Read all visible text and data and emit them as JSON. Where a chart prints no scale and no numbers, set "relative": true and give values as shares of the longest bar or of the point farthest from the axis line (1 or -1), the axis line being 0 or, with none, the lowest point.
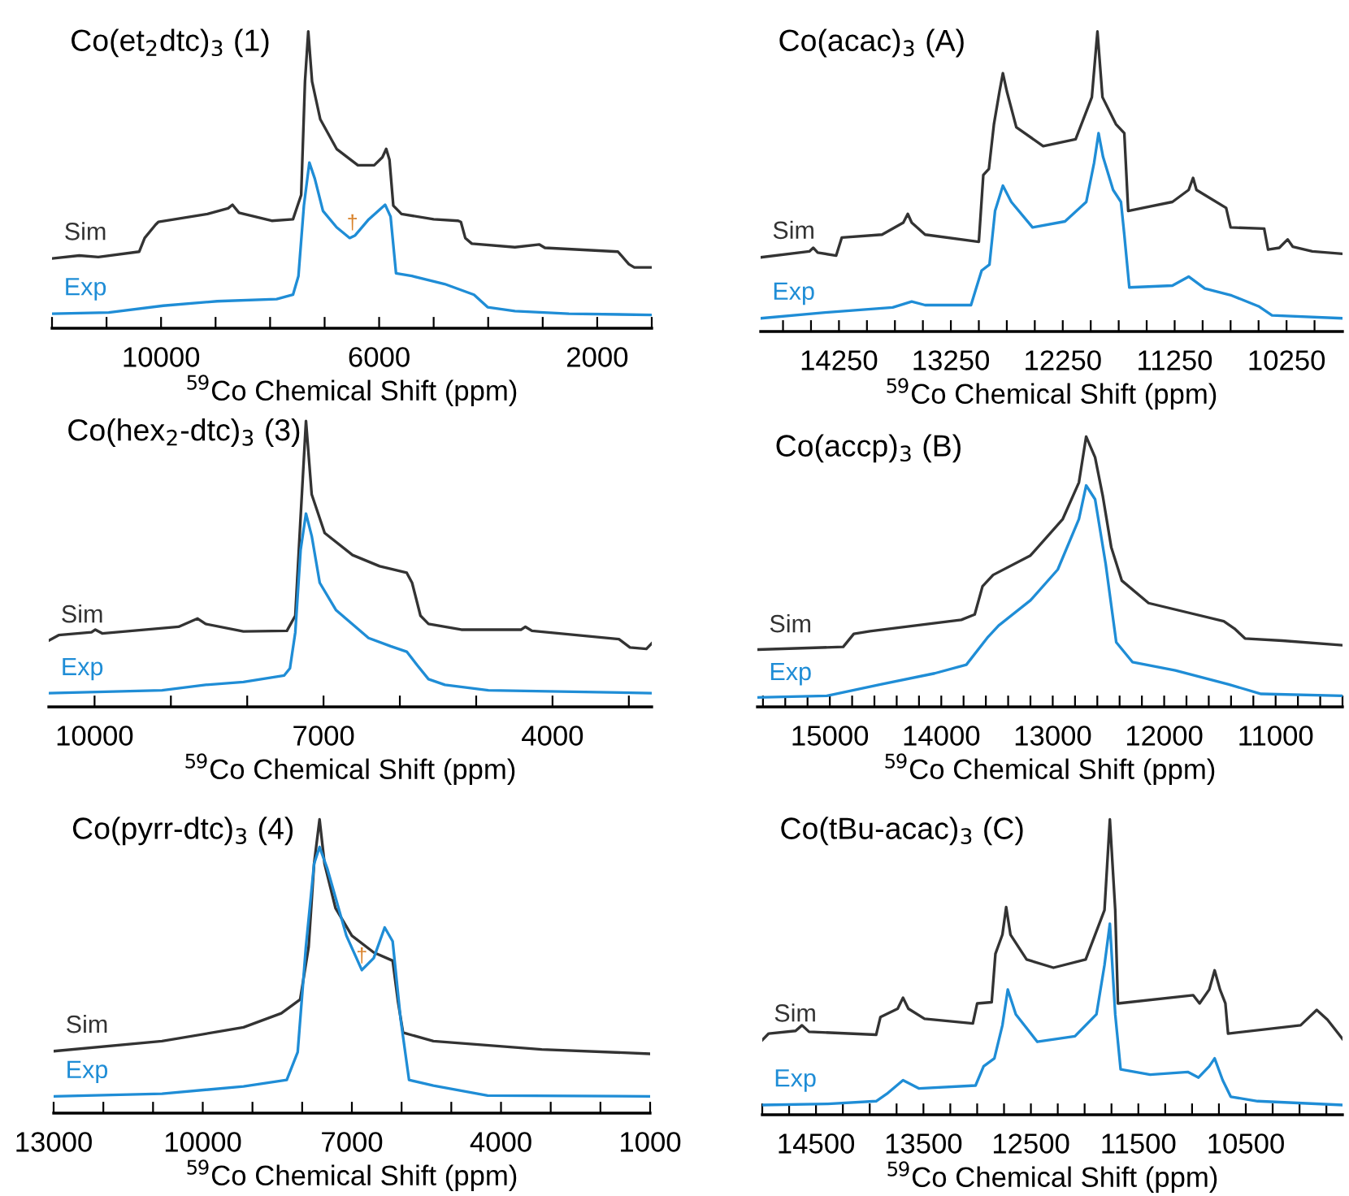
{
  "chart_data": [
    {
      "type": "line",
      "title": "Co(et$_{2}$dtc)$_{3}$ (1)",
      "xlabel": "$^{59}$Co Chemical Shift (ppm)",
      "relative": true,
      "tick_labels": "x",
      "xlim": [
        12000,
        1000
      ],
      "xticks": [
        {
          "value": 12000,
          "label": null
        },
        {
          "value": 11000,
          "label": null
        },
        10000,
        {
          "value": 9000,
          "label": null
        },
        {
          "value": 8000,
          "label": null
        },
        {
          "value": 7000,
          "label": null
        },
        6000,
        {
          "value": 5000,
          "label": null
        },
        {
          "value": 4000,
          "label": null
        },
        {
          "value": 3000,
          "label": null
        },
        2000,
        {
          "value": 1000,
          "label": null
        }
      ],
      "annotations": [
        {
          "text": "†",
          "x": 6490,
          "y": 0.32
        }
      ],
      "series": [
        {
          "name": "Sim",
          "color": "#333333",
          "x": [
            12000,
            11500,
            11150,
            10400,
            10300,
            10100,
            10050,
            9150,
            8770,
            8690,
            8570,
            7970,
            7580,
            7430,
            7360,
            7300,
            7230,
            7080,
            6780,
            6390,
            6090,
            5940,
            5870,
            5810,
            5740,
            5590,
            5000,
            4550,
            4500,
            4420,
            4300,
            3510,
            3060,
            2960,
            1620,
            1420,
            1320,
            1000
          ],
          "values": [
            0.235,
            0.245,
            0.24,
            0.258,
            0.304,
            0.349,
            0.358,
            0.385,
            0.404,
            0.416,
            0.389,
            0.362,
            0.367,
            0.449,
            0.831,
            1.0,
            0.831,
            0.704,
            0.604,
            0.549,
            0.549,
            0.576,
            0.604,
            0.567,
            0.413,
            0.385,
            0.367,
            0.362,
            0.358,
            0.304,
            0.285,
            0.273,
            0.282,
            0.271,
            0.258,
            0.216,
            0.205,
            0.205
          ]
        },
        {
          "name": "Exp",
          "color": "#1f8dd6",
          "x": [
            12000,
            10960,
            9960,
            8970,
            7880,
            7580,
            7480,
            7380,
            7280,
            7180,
            7030,
            6780,
            6540,
            6440,
            6190,
            5890,
            5790,
            5690,
            5400,
            4800,
            4260,
            4010,
            3510,
            2520,
            1000
          ],
          "values": [
            0.049,
            0.053,
            0.076,
            0.091,
            0.098,
            0.113,
            0.176,
            0.413,
            0.558,
            0.504,
            0.395,
            0.34,
            0.304,
            0.313,
            0.367,
            0.416,
            0.376,
            0.185,
            0.176,
            0.149,
            0.113,
            0.071,
            0.058,
            0.049,
            0.045
          ]
        }
      ]
    },
    {
      "type": "line",
      "title": "Co(acac)$_{3}$ (A)",
      "xlabel": "$^{59}$Co Chemical Shift (ppm)",
      "relative": true,
      "tick_labels": "x",
      "xlim": [
        14950,
        9750
      ],
      "xticks": [
        {
          "value": 14750,
          "label": null
        },
        {
          "value": 14500,
          "label": null
        },
        14250,
        {
          "value": 14000,
          "label": null
        },
        {
          "value": 13750,
          "label": null
        },
        {
          "value": 13500,
          "label": null
        },
        13250,
        {
          "value": 13000,
          "label": null
        },
        {
          "value": 12750,
          "label": null
        },
        {
          "value": 12500,
          "label": null
        },
        12250,
        {
          "value": 12000,
          "label": null
        },
        {
          "value": 11750,
          "label": null
        },
        {
          "value": 11500,
          "label": null
        },
        11250,
        {
          "value": 11000,
          "label": null
        },
        {
          "value": 10750,
          "label": null
        },
        {
          "value": 10500,
          "label": null
        },
        10250,
        {
          "value": 10000,
          "label": null
        }
      ],
      "series": [
        {
          "name": "Sim",
          "color": "#333333",
          "x": [
            14950,
            14515,
            14480,
            14440,
            14275,
            14225,
            13865,
            13675,
            13635,
            13600,
            13480,
            13000,
            12960,
            12910,
            12865,
            12815,
            12785,
            12750,
            12665,
            12425,
            12135,
            11990,
            11940,
            11895,
            11775,
            11700,
            11665,
            11270,
            11125,
            11085,
            11055,
            10790,
            10750,
            10450,
            10415,
            10315,
            10240,
            10195,
            10020,
            9750
          ],
          "values": [
            0.247,
            0.267,
            0.279,
            0.263,
            0.253,
            0.313,
            0.323,
            0.363,
            0.392,
            0.363,
            0.323,
            0.299,
            0.522,
            0.542,
            0.691,
            0.801,
            0.861,
            0.801,
            0.681,
            0.618,
            0.641,
            0.781,
            1.0,
            0.781,
            0.691,
            0.661,
            0.402,
            0.432,
            0.472,
            0.512,
            0.472,
            0.412,
            0.347,
            0.343,
            0.273,
            0.279,
            0.307,
            0.283,
            0.267,
            0.259
          ]
        },
        {
          "name": "Exp",
          "color": "#1f8dd6",
          "x": [
            14950,
            14350,
            13770,
            13600,
            13480,
            13070,
            13025,
            12975,
            12905,
            12855,
            12785,
            12710,
            12520,
            12230,
            12040,
            11970,
            11930,
            11890,
            11800,
            11730,
            11700,
            11655,
            11270,
            11125,
            10980,
            10740,
            10500,
            10380,
            9750
          ],
          "values": [
            0.044,
            0.064,
            0.08,
            0.1,
            0.088,
            0.088,
            0.143,
            0.203,
            0.223,
            0.402,
            0.486,
            0.432,
            0.347,
            0.367,
            0.432,
            0.562,
            0.661,
            0.582,
            0.472,
            0.432,
            0.323,
            0.147,
            0.153,
            0.183,
            0.143,
            0.12,
            0.084,
            0.054,
            0.044
          ]
        }
      ]
    },
    {
      "type": "line",
      "title": "Co(hex$_{2}$-dtc)$_{3}$ (3)",
      "xlabel": "$^{59}$Co Chemical Shift (ppm)",
      "relative": true,
      "tick_labels": "x",
      "xlim": [
        10600,
        2700
      ],
      "xticks": [
        10000,
        {
          "value": 9000,
          "label": null
        },
        {
          "value": 8000,
          "label": null
        },
        7000,
        {
          "value": 6000,
          "label": null
        },
        {
          "value": 5000,
          "label": null
        },
        4000,
        {
          "value": 3000,
          "label": null
        }
      ],
      "series": [
        {
          "name": "Sim",
          "color": "#333333",
          "x": [
            10600,
            10470,
            10040,
            9990,
            9900,
            8900,
            8650,
            8545,
            8050,
            7480,
            7370,
            7300,
            7230,
            7155,
            6985,
            6620,
            6265,
            5910,
            5840,
            5730,
            5625,
            5195,
            4410,
            4355,
            4270,
            3130,
            2985,
            2770,
            2700
          ],
          "values": [
            0.232,
            0.251,
            0.261,
            0.27,
            0.257,
            0.28,
            0.309,
            0.29,
            0.264,
            0.266,
            0.319,
            0.666,
            1.0,
            0.743,
            0.608,
            0.531,
            0.492,
            0.469,
            0.434,
            0.319,
            0.29,
            0.27,
            0.27,
            0.28,
            0.266,
            0.237,
            0.208,
            0.203,
            0.222
          ]
        },
        {
          "name": "Exp",
          "color": "#1f8dd6",
          "x": [
            10600,
            9115,
            8545,
            8050,
            7515,
            7440,
            7370,
            7300,
            7230,
            7155,
            7050,
            6835,
            6410,
            6120,
            5910,
            5770,
            5625,
            5410,
            4840,
            2700
          ],
          "values": [
            0.048,
            0.058,
            0.077,
            0.087,
            0.11,
            0.135,
            0.261,
            0.55,
            0.676,
            0.598,
            0.434,
            0.338,
            0.241,
            0.212,
            0.193,
            0.145,
            0.097,
            0.077,
            0.058,
            0.048
          ]
        }
      ]
    },
    {
      "type": "line",
      "title": "Co(accp)$_{3}$ (B)",
      "xlabel": "$^{59}$Co Chemical Shift (ppm)",
      "relative": true,
      "tick_labels": "x",
      "xlim": [
        15650,
        10400
      ],
      "xticks": [
        {
          "value": 15600,
          "label": null
        },
        {
          "value": 15400,
          "label": null
        },
        {
          "value": 15200,
          "label": null
        },
        15000,
        {
          "value": 14800,
          "label": null
        },
        {
          "value": 14600,
          "label": null
        },
        {
          "value": 14400,
          "label": null
        },
        {
          "value": 14200,
          "label": null
        },
        14000,
        {
          "value": 13800,
          "label": null
        },
        {
          "value": 13600,
          "label": null
        },
        {
          "value": 13400,
          "label": null
        },
        {
          "value": 13200,
          "label": null
        },
        13000,
        {
          "value": 12800,
          "label": null
        },
        {
          "value": 12600,
          "label": null
        },
        {
          "value": 12400,
          "label": null
        },
        {
          "value": 12200,
          "label": null
        },
        12000,
        {
          "value": 11800,
          "label": null
        },
        {
          "value": 11600,
          "label": null
        },
        {
          "value": 11400,
          "label": null
        },
        {
          "value": 11200,
          "label": null
        },
        11000,
        {
          "value": 10800,
          "label": null
        },
        {
          "value": 10600,
          "label": null
        },
        {
          "value": 10400,
          "label": null
        }
      ],
      "series": [
        {
          "name": "Sim",
          "color": "#333333",
          "x": [
            15650,
            14880,
            14785,
            14640,
            13820,
            13700,
            13630,
            13535,
            13200,
            12910,
            12765,
            12700,
            12620,
            12550,
            12475,
            12380,
            12140,
            11465,
            11370,
            11275,
            10940,
            10400
          ],
          "values": [
            0.212,
            0.222,
            0.27,
            0.28,
            0.322,
            0.342,
            0.446,
            0.488,
            0.56,
            0.695,
            0.83,
            1.0,
            0.923,
            0.778,
            0.591,
            0.467,
            0.384,
            0.317,
            0.29,
            0.253,
            0.245,
            0.228
          ]
        },
        {
          "name": "Exp",
          "color": "#1f8dd6",
          "x": [
            15650,
            15025,
            14545,
            14060,
            13775,
            13580,
            13485,
            13200,
            12955,
            12765,
            12700,
            12620,
            12525,
            12430,
            12285,
            11900,
            11420,
            11130,
            10400
          ],
          "values": [
            0.035,
            0.041,
            0.083,
            0.124,
            0.156,
            0.259,
            0.301,
            0.394,
            0.508,
            0.695,
            0.819,
            0.768,
            0.529,
            0.239,
            0.166,
            0.135,
            0.083,
            0.048,
            0.041
          ]
        }
      ]
    },
    {
      "type": "line",
      "title": "Co(pyrr-dtc)$_{3}$ (4)",
      "xlabel": "$^{59}$Co Chemical Shift (ppm)",
      "relative": true,
      "tick_labels": "x",
      "xlim": [
        13000,
        1000
      ],
      "xticks": [
        13000,
        {
          "value": 12000,
          "label": null
        },
        {
          "value": 11000,
          "label": null
        },
        10000,
        {
          "value": 9000,
          "label": null
        },
        {
          "value": 8000,
          "label": null
        },
        7000,
        {
          "value": 6000,
          "label": null
        },
        {
          "value": 5000,
          "label": null
        },
        4000,
        {
          "value": 3000,
          "label": null
        },
        {
          "value": 2000,
          "label": null
        },
        1000
      ],
      "annotations": [
        {
          "text": "†",
          "x": 6800,
          "y": 0.5
        }
      ],
      "series": [
        {
          "name": "Sim",
          "color": "#333333",
          "x": [
            13000,
            10820,
            9180,
            8420,
            8040,
            7870,
            7760,
            7650,
            7550,
            7330,
            7000,
            6560,
            6180,
            6070,
            5970,
            5360,
            3180,
            1000
          ],
          "values": [
            0.211,
            0.245,
            0.292,
            0.34,
            0.387,
            0.566,
            0.849,
            1.0,
            0.849,
            0.698,
            0.604,
            0.547,
            0.519,
            0.377,
            0.274,
            0.245,
            0.217,
            0.202
          ]
        },
        {
          "name": "Exp",
          "color": "#1f8dd6",
          "x": [
            13000,
            10820,
            9180,
            8310,
            8090,
            7925,
            7760,
            7650,
            7490,
            7110,
            6800,
            6560,
            6340,
            6180,
            6020,
            5850,
            5360,
            4270,
            1000
          ],
          "values": [
            0.057,
            0.066,
            0.091,
            0.113,
            0.208,
            0.566,
            0.849,
            0.906,
            0.83,
            0.604,
            0.487,
            0.528,
            0.632,
            0.585,
            0.321,
            0.113,
            0.094,
            0.06,
            0.057
          ]
        }
      ]
    },
    {
      "type": "line",
      "title": "Co(tBu-acac)$_{3}$ (C)",
      "xlabel": "$^{59}$Co Chemical Shift (ppm)",
      "relative": true,
      "tick_labels": "x",
      "xlim": [
        15000,
        9600
      ],
      "xticks": [
        {
          "value": 15000,
          "label": null
        },
        {
          "value": 14750,
          "label": null
        },
        14500,
        {
          "value": 14250,
          "label": null
        },
        {
          "value": 14000,
          "label": null
        },
        {
          "value": 13750,
          "label": null
        },
        13500,
        {
          "value": 13250,
          "label": null
        },
        {
          "value": 13000,
          "label": null
        },
        {
          "value": 12750,
          "label": null
        },
        12500,
        {
          "value": 12250,
          "label": null
        },
        {
          "value": 12000,
          "label": null
        },
        {
          "value": 11750,
          "label": null
        },
        11500,
        {
          "value": 11250,
          "label": null
        },
        {
          "value": 11000,
          "label": null
        },
        {
          "value": 10750,
          "label": null
        },
        10500,
        {
          "value": 10250,
          "label": null
        },
        {
          "value": 10000,
          "label": null
        },
        {
          "value": 9750,
          "label": null
        }
      ],
      "series": [
        {
          "name": "Sim",
          "color": "#333333",
          "x": [
            15000,
            14940,
            14690,
            14630,
            14565,
            13940,
            13900,
            13740,
            13690,
            13640,
            13490,
            13040,
            13000,
            12865,
            12830,
            12765,
            12730,
            12690,
            12540,
            12290,
            11990,
            11815,
            11765,
            11715,
            11690,
            10990,
            10930,
            10840,
            10790,
            10740,
            10690,
            10665,
            9990,
            9840,
            9740,
            9600
          ],
          "values": [
            0.253,
            0.275,
            0.284,
            0.303,
            0.281,
            0.271,
            0.331,
            0.359,
            0.396,
            0.359,
            0.325,
            0.309,
            0.377,
            0.381,
            0.545,
            0.61,
            0.703,
            0.61,
            0.526,
            0.498,
            0.526,
            0.693,
            1.0,
            0.693,
            0.377,
            0.405,
            0.377,
            0.424,
            0.489,
            0.424,
            0.377,
            0.275,
            0.303,
            0.355,
            0.322,
            0.257
          ]
        },
        {
          "name": "Exp",
          "color": "#1f8dd6",
          "x": [
            15000,
            14390,
            13940,
            13840,
            13690,
            13540,
            13015,
            12940,
            12840,
            12765,
            12715,
            12640,
            12440,
            12090,
            11890,
            11815,
            11765,
            11715,
            11665,
            11390,
            11040,
            10940,
            10840,
            10790,
            10715,
            10640,
            10390,
            9600
          ],
          "values": [
            0.033,
            0.037,
            0.046,
            0.071,
            0.117,
            0.089,
            0.099,
            0.164,
            0.191,
            0.303,
            0.424,
            0.34,
            0.247,
            0.266,
            0.34,
            0.507,
            0.647,
            0.34,
            0.154,
            0.136,
            0.145,
            0.126,
            0.164,
            0.191,
            0.117,
            0.061,
            0.046,
            0.033
          ]
        }
      ]
    }
  ]
}
